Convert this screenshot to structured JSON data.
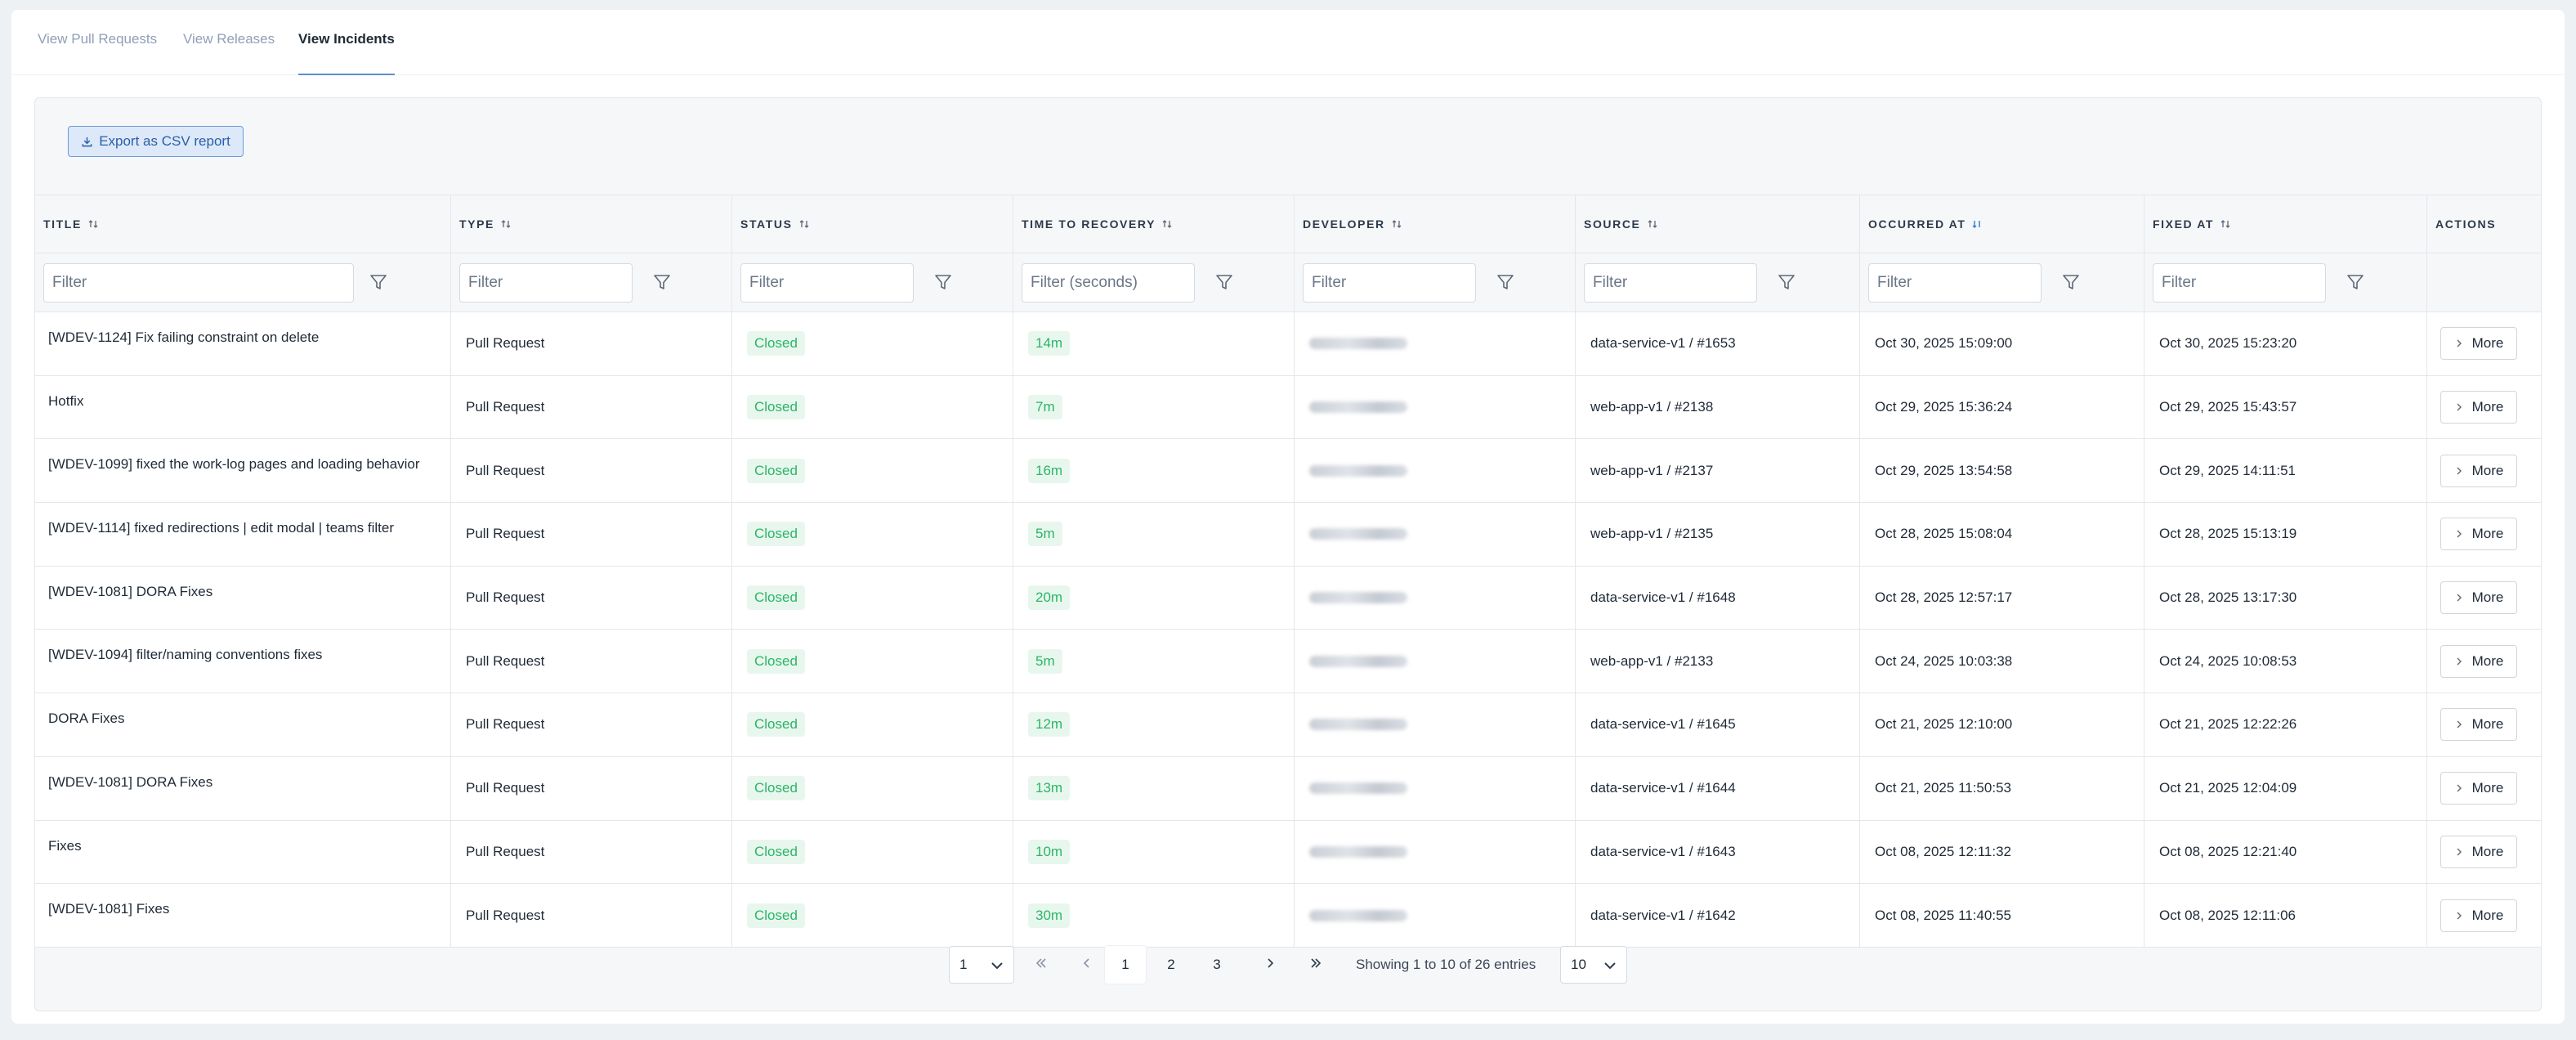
{
  "tabs": [
    {
      "label": "View Pull Requests"
    },
    {
      "label": "View Releases"
    },
    {
      "label": "View Incidents"
    }
  ],
  "export_button": {
    "label": "Export as CSV report"
  },
  "columns": [
    {
      "label": "TITLE",
      "filter_placeholder": "Filter"
    },
    {
      "label": "TYPE",
      "filter_placeholder": "Filter"
    },
    {
      "label": "STATUS",
      "filter_placeholder": "Filter"
    },
    {
      "label": "TIME TO RECOVERY",
      "filter_placeholder": "Filter (seconds)"
    },
    {
      "label": "DEVELOPER",
      "filter_placeholder": "Filter"
    },
    {
      "label": "SOURCE",
      "filter_placeholder": "Filter"
    },
    {
      "label": "OCCURRED AT",
      "filter_placeholder": "Filter"
    },
    {
      "label": "FIXED AT",
      "filter_placeholder": "Filter"
    },
    {
      "label": "ACTIONS"
    }
  ],
  "rows": [
    {
      "title": "[WDEV-1124] Fix failing constraint on delete",
      "type": "Pull Request",
      "status": "Closed",
      "ttr": "14m",
      "source": "data-service-v1 / #1653",
      "occurred": "Oct 30, 2025 15:09:00",
      "fixed": "Oct 30, 2025 15:23:20",
      "action": "More"
    },
    {
      "title": "Hotfix",
      "type": "Pull Request",
      "status": "Closed",
      "ttr": "7m",
      "source": "web-app-v1 / #2138",
      "occurred": "Oct 29, 2025 15:36:24",
      "fixed": "Oct 29, 2025 15:43:57",
      "action": "More"
    },
    {
      "title": "[WDEV-1099] fixed the work-log pages and loading behavior",
      "type": "Pull Request",
      "status": "Closed",
      "ttr": "16m",
      "source": "web-app-v1 / #2137",
      "occurred": "Oct 29, 2025 13:54:58",
      "fixed": "Oct 29, 2025 14:11:51",
      "action": "More"
    },
    {
      "title": "[WDEV-1114] fixed redirections | edit modal | teams filter",
      "type": "Pull Request",
      "status": "Closed",
      "ttr": "5m",
      "source": "web-app-v1 / #2135",
      "occurred": "Oct 28, 2025 15:08:04",
      "fixed": "Oct 28, 2025 15:13:19",
      "action": "More"
    },
    {
      "title": "[WDEV-1081] DORA Fixes",
      "type": "Pull Request",
      "status": "Closed",
      "ttr": "20m",
      "source": "data-service-v1 / #1648",
      "occurred": "Oct 28, 2025 12:57:17",
      "fixed": "Oct 28, 2025 13:17:30",
      "action": "More"
    },
    {
      "title": "[WDEV-1094] filter/naming conventions fixes",
      "type": "Pull Request",
      "status": "Closed",
      "ttr": "5m",
      "source": "web-app-v1 / #2133",
      "occurred": "Oct 24, 2025 10:03:38",
      "fixed": "Oct 24, 2025 10:08:53",
      "action": "More"
    },
    {
      "title": "DORA Fixes",
      "type": "Pull Request",
      "status": "Closed",
      "ttr": "12m",
      "source": "data-service-v1 / #1645",
      "occurred": "Oct 21, 2025 12:10:00",
      "fixed": "Oct 21, 2025 12:22:26",
      "action": "More"
    },
    {
      "title": "[WDEV-1081] DORA Fixes",
      "type": "Pull Request",
      "status": "Closed",
      "ttr": "13m",
      "source": "data-service-v1 / #1644",
      "occurred": "Oct 21, 2025 11:50:53",
      "fixed": "Oct 21, 2025 12:04:09",
      "action": "More"
    },
    {
      "title": "Fixes",
      "type": "Pull Request",
      "status": "Closed",
      "ttr": "10m",
      "source": "data-service-v1 / #1643",
      "occurred": "Oct 08, 2025 12:11:32",
      "fixed": "Oct 08, 2025 12:21:40",
      "action": "More"
    },
    {
      "title": "[WDEV-1081] Fixes",
      "type": "Pull Request",
      "status": "Closed",
      "ttr": "30m",
      "source": "data-service-v1 / #1642",
      "occurred": "Oct 08, 2025 11:40:55",
      "fixed": "Oct 08, 2025 12:11:06",
      "action": "More"
    }
  ],
  "pagination": {
    "page_select": "1",
    "pages": [
      "1",
      "2",
      "3"
    ],
    "current_page": "1",
    "summary": "Showing 1 to 10 of 26 entries",
    "page_size": "10"
  },
  "colors": {
    "accent": "#5b8fd0",
    "status_green": "#2bb566",
    "badge_bg": "#e8f7ee"
  },
  "icons": [
    "download-icon",
    "sort-icon",
    "sort-desc-icon",
    "filter-funnel-icon",
    "chevron-right-icon",
    "chevron-down-icon",
    "first-page-icon",
    "prev-page-icon",
    "next-page-icon",
    "last-page-icon"
  ]
}
